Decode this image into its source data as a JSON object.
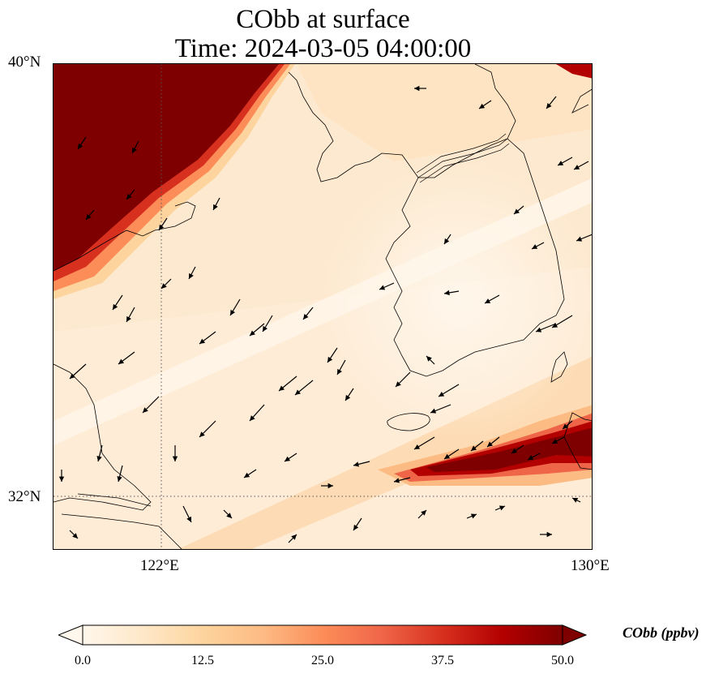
{
  "title": {
    "line1": "CObb at surface",
    "line2": "Time: 2024-03-05 04:00:00"
  },
  "map": {
    "lat_ticks": [
      "40°N",
      "32°N"
    ],
    "lon_ticks": [
      "122°E",
      "130°E"
    ],
    "extent": {
      "lon_min": 120,
      "lon_max": 130,
      "lat_min": 31,
      "lat_max": 40
    },
    "gridlines": {
      "lon": [
        122
      ],
      "lat": [
        32
      ],
      "style": "dotted"
    },
    "overlays": [
      "coastlines",
      "wind-vectors"
    ],
    "high_concentration_regions": [
      "northwest (Bohai / North China)",
      "south of Korea near Kyushu"
    ]
  },
  "colorbar": {
    "label": "CObb (ppbv)",
    "ticks": [
      "0.0",
      "12.5",
      "25.0",
      "37.5",
      "50.0"
    ],
    "min": 0,
    "max": 50,
    "extend": "both",
    "colormap": "OrRd",
    "colors": [
      "#fff7ec",
      "#fee8c8",
      "#fdd49e",
      "#fdbb84",
      "#fc8d59",
      "#ef6548",
      "#d7301f",
      "#b30000",
      "#7f0000"
    ]
  }
}
